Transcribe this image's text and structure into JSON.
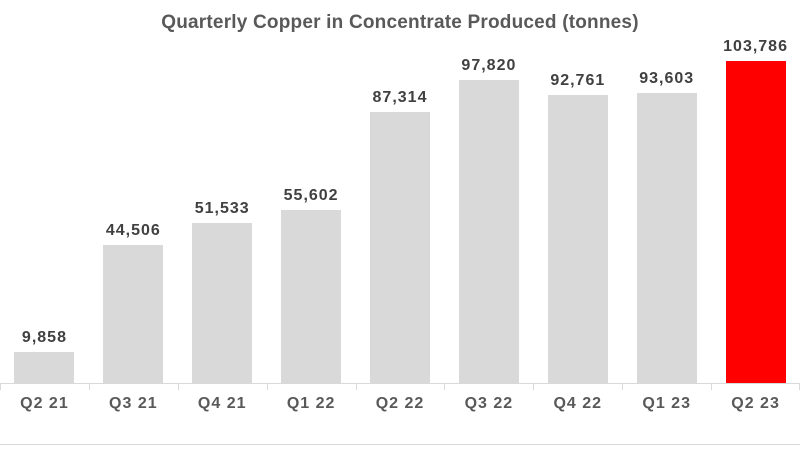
{
  "chart_data": {
    "type": "bar",
    "title": "Quarterly Copper in Concentrate Produced (tonnes)",
    "categories": [
      "Q2 21",
      "Q3 21",
      "Q4 21",
      "Q1 22",
      "Q2 22",
      "Q3 22",
      "Q4 22",
      "Q1 23",
      "Q2 23"
    ],
    "values": [
      9858,
      44506,
      51533,
      55602,
      87314,
      97820,
      92761,
      93603,
      103786
    ],
    "data_labels": [
      "9,858",
      "44,506",
      "51,533",
      "55,602",
      "87,314",
      "97,820",
      "92,761",
      "93,603",
      "103,786"
    ],
    "highlight_index": 8,
    "xlabel": "",
    "ylabel": "",
    "y_axis_visible": false,
    "grid": false,
    "legend": false,
    "colors": {
      "bar": "#d9d9d9",
      "highlight": "#ff0000",
      "axis": "#d9d9d9",
      "title_text": "#595959",
      "data_label_text": "#404040",
      "category_label_text": "#595959",
      "background": "#ffffff"
    }
  }
}
